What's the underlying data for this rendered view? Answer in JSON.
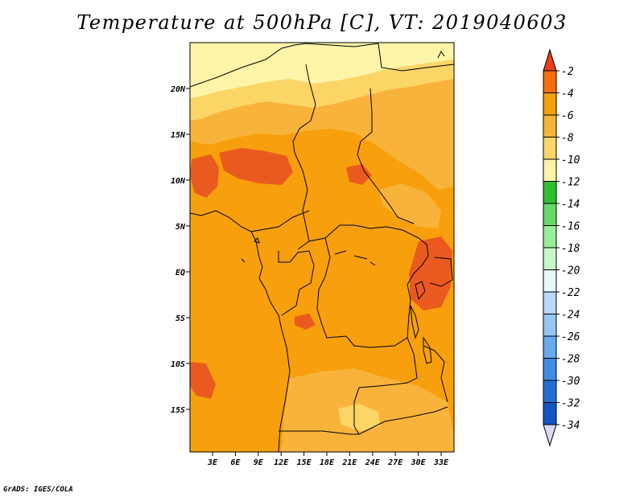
{
  "title": "Temperature at 500hPa [C], VT: 2019040603",
  "credit": "GrADS: IGES/COLA",
  "map": {
    "variable": "Temperature at 500hPa",
    "units": "C",
    "valid_time": "2019040603",
    "lat_ticks": [
      "20N",
      "15N",
      "10N",
      "5N",
      "EQ",
      "5S",
      "10S",
      "15S"
    ],
    "lon_ticks": [
      "3E",
      "6E",
      "9E",
      "12E",
      "15E",
      "18E",
      "21E",
      "24E",
      "27E",
      "30E",
      "33E"
    ]
  },
  "colorbar": {
    "labels": [
      "-2",
      "-4",
      "-6",
      "-8",
      "-10",
      "-12",
      "-14",
      "-16",
      "-18",
      "-20",
      "-22",
      "-24",
      "-26",
      "-28",
      "-30",
      "-32",
      "-34"
    ],
    "colors": [
      "#ea3e1c",
      "#f76d0e",
      "#f79f0c",
      "#f8b33b",
      "#fbd667",
      "#fdf4a8",
      "#2fc02f",
      "#66d966",
      "#98ed98",
      "#c7f7c7",
      "#e6f9f9",
      "#bad9f7",
      "#95c6f5",
      "#68a9ef",
      "#3f8de7",
      "#246fd7",
      "#1455c4",
      "#0f3a9f",
      "#0c1e75",
      "#d8d8f0"
    ]
  },
  "field_colors": {
    "warmest": "#ea5a1f",
    "warm": "#f79f0c",
    "mild": "#f8b33b",
    "cool": "#fbd667",
    "coolest": "#fdf4a8"
  }
}
